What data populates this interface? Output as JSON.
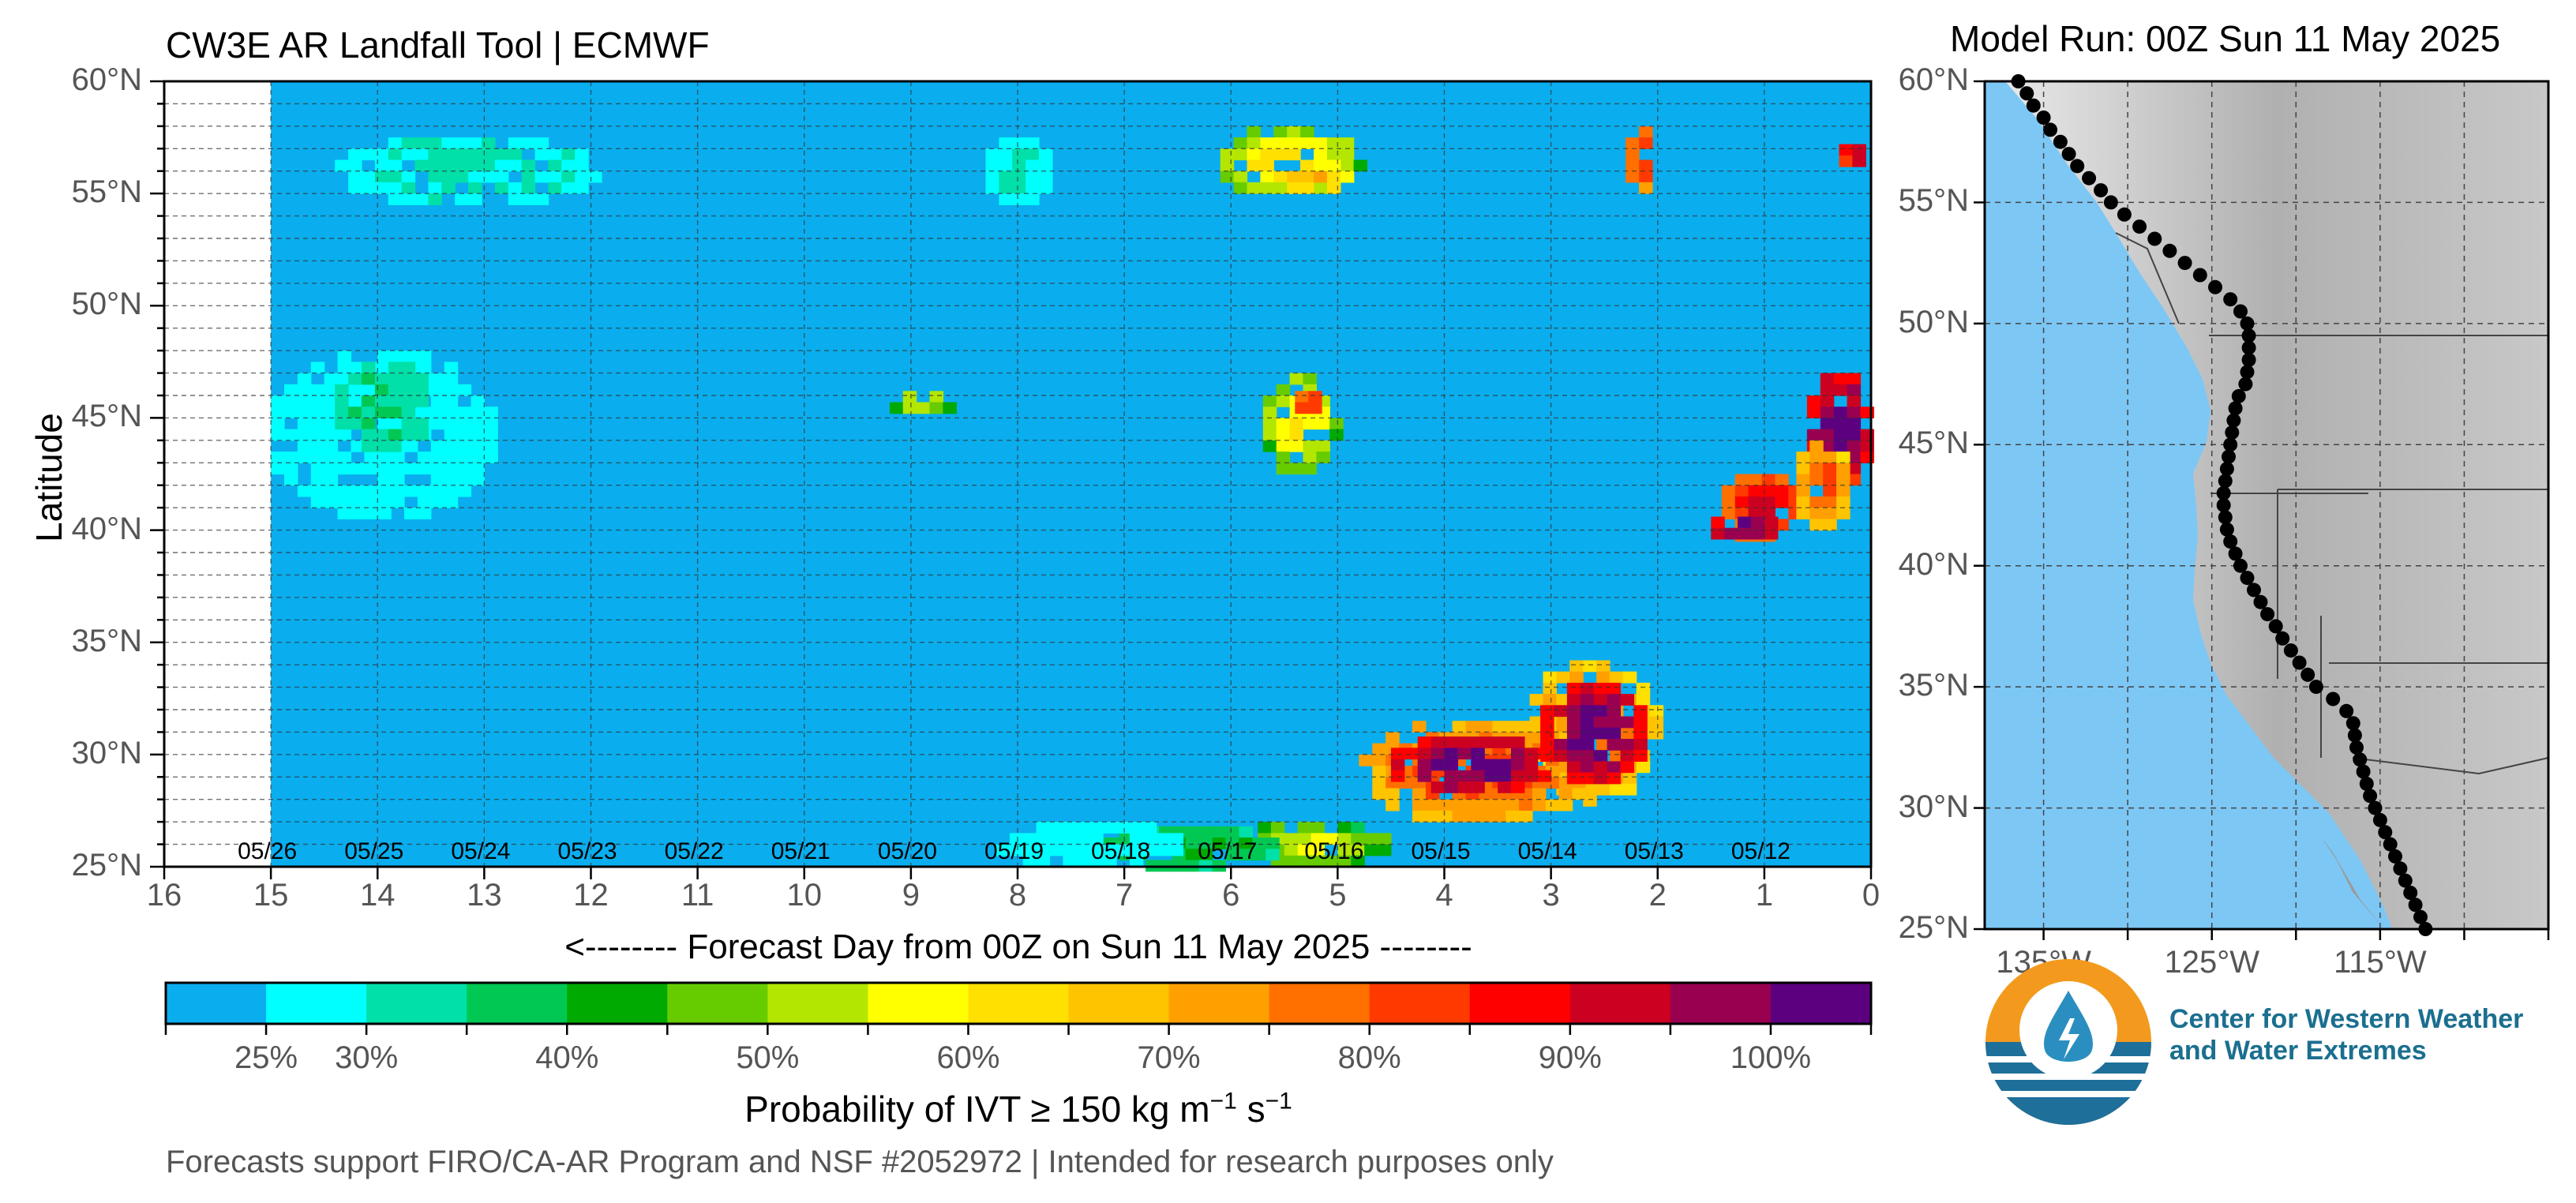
{
  "header": {
    "title": "CW3E AR Landfall Tool | ECMWF",
    "model_run": "Model Run: 00Z Sun 11 May 2025"
  },
  "chart_data": {
    "type": "heatmap",
    "ylabel": "Latitude",
    "xlabel": "<-------- Forecast Day from 00Z on Sun 11 May 2025 --------",
    "x_ticks": [
      "16",
      "15",
      "14",
      "13",
      "12",
      "11",
      "10",
      "9",
      "8",
      "7",
      "6",
      "5",
      "4",
      "3",
      "2",
      "1",
      "0"
    ],
    "y_ticks": [
      "60°N",
      "55°N",
      "50°N",
      "45°N",
      "40°N",
      "35°N",
      "30°N",
      "25°N"
    ],
    "xlim": [
      16,
      0
    ],
    "ylim": [
      25,
      60
    ],
    "date_labels": [
      "05/26",
      "05/25",
      "05/24",
      "05/23",
      "05/22",
      "05/21",
      "05/20",
      "05/19",
      "05/18",
      "05/17",
      "05/16",
      "05/15",
      "05/14",
      "05/13",
      "05/12"
    ],
    "background_color": "#0aaeee",
    "colorbar": {
      "label_prefix": "Probability of IVT ",
      "label_ge": "≥",
      "label_value": " 150 kg m",
      "label_exp1": "−1",
      "label_s": " s",
      "label_exp2": "−1",
      "ticks": [
        "25%",
        "30%",
        "40%",
        "50%",
        "60%",
        "70%",
        "80%",
        "90%",
        "100%"
      ],
      "tick_values": [
        25,
        30,
        40,
        50,
        60,
        70,
        80,
        90,
        100
      ],
      "range": [
        20,
        105
      ],
      "bins": [
        {
          "from": 20,
          "to": 25,
          "color": "#0aaeee"
        },
        {
          "from": 25,
          "to": 30,
          "color": "#00ffff"
        },
        {
          "from": 30,
          "to": 35,
          "color": "#00e0a8"
        },
        {
          "from": 35,
          "to": 40,
          "color": "#00c853"
        },
        {
          "from": 40,
          "to": 45,
          "color": "#00aa00"
        },
        {
          "from": 45,
          "to": 50,
          "color": "#66cc00"
        },
        {
          "from": 50,
          "to": 55,
          "color": "#b3e600"
        },
        {
          "from": 55,
          "to": 60,
          "color": "#ffff00"
        },
        {
          "from": 60,
          "to": 65,
          "color": "#ffe000"
        },
        {
          "from": 65,
          "to": 70,
          "color": "#ffc400"
        },
        {
          "from": 70,
          "to": 75,
          "color": "#ffa000"
        },
        {
          "from": 75,
          "to": 80,
          "color": "#ff7000"
        },
        {
          "from": 80,
          "to": 85,
          "color": "#ff3a00"
        },
        {
          "from": 85,
          "to": 90,
          "color": "#ff0000"
        },
        {
          "from": 90,
          "to": 95,
          "color": "#cc0020"
        },
        {
          "from": 95,
          "to": 100,
          "color": "#990050"
        },
        {
          "from": 100,
          "to": 105,
          "color": "#5c0080"
        }
      ]
    },
    "features": [
      {
        "day_min": 14.4,
        "day_max": 11.9,
        "lat_min": 54.5,
        "lat_max": 57.5,
        "prob": 32
      },
      {
        "day_min": 15.0,
        "day_max": 12.9,
        "lat_min": 40.5,
        "lat_max": 48.0,
        "prob": 28
      },
      {
        "day_min": 14.4,
        "day_max": 13.5,
        "lat_min": 43.5,
        "lat_max": 47.5,
        "prob": 35
      },
      {
        "day_min": 8.3,
        "day_max": 7.7,
        "lat_min": 54.5,
        "lat_max": 57.5,
        "prob": 30
      },
      {
        "day_min": 9.2,
        "day_max": 8.6,
        "lat_min": 45.2,
        "lat_max": 46.2,
        "prob": 57
      },
      {
        "day_min": 6.1,
        "day_max": 4.8,
        "lat_min": 54.8,
        "lat_max": 58.0,
        "prob": 62
      },
      {
        "day_min": 5.6,
        "day_max": 4.9,
        "lat_min": 54.8,
        "lat_max": 56.5,
        "prob": 70
      },
      {
        "day_min": 5.7,
        "day_max": 5.0,
        "lat_min": 42.5,
        "lat_max": 47.0,
        "prob": 60
      },
      {
        "day_min": 5.4,
        "day_max": 5.1,
        "lat_min": 45.2,
        "lat_max": 46.2,
        "prob": 87
      },
      {
        "day_min": 3.2,
        "day_max": 2.0,
        "lat_min": 28.0,
        "lat_max": 34.2,
        "prob": 78
      },
      {
        "day_min": 4.8,
        "day_max": 2.6,
        "lat_min": 27.0,
        "lat_max": 31.5,
        "prob": 82
      },
      {
        "day_min": 3.1,
        "day_max": 2.1,
        "lat_min": 28.8,
        "lat_max": 33.2,
        "prob": 102
      },
      {
        "day_min": 4.5,
        "day_max": 3.0,
        "lat_min": 28.2,
        "lat_max": 30.8,
        "prob": 102
      },
      {
        "day_min": 6.0,
        "day_max": 4.5,
        "lat_min": 25.0,
        "lat_max": 27.0,
        "prob": 55
      },
      {
        "day_min": 7.3,
        "day_max": 5.5,
        "lat_min": 25.0,
        "lat_max": 26.8,
        "prob": 40
      },
      {
        "day_min": 8.2,
        "day_max": 6.5,
        "lat_min": 25.0,
        "lat_max": 27.0,
        "prob": 28
      },
      {
        "day_min": 1.4,
        "day_max": 0.6,
        "lat_min": 39.5,
        "lat_max": 42.5,
        "prob": 90
      },
      {
        "day_min": 1.5,
        "day_max": 0.8,
        "lat_min": 39.6,
        "lat_max": 40.6,
        "prob": 102
      },
      {
        "day_min": 0.6,
        "day_max": 0.0,
        "lat_min": 42.0,
        "lat_max": 47.0,
        "prob": 102
      },
      {
        "day_min": 0.7,
        "day_max": 0.2,
        "lat_min": 40.0,
        "lat_max": 44.0,
        "prob": 80
      },
      {
        "day_min": 2.3,
        "day_max": 2.0,
        "lat_min": 55.0,
        "lat_max": 58.5,
        "prob": 85
      },
      {
        "day_min": 0.3,
        "day_max": 0.0,
        "lat_min": 56.3,
        "lat_max": 57.2,
        "prob": 96
      }
    ]
  },
  "map": {
    "lat_ticks": [
      "60°N",
      "55°N",
      "50°N",
      "45°N",
      "40°N",
      "35°N",
      "30°N",
      "25°N"
    ],
    "lon_ticks": [
      "135°W",
      "125°W",
      "115°W"
    ],
    "ocean_color": "#7dc7f5"
  },
  "logo": {
    "line1": "Center for Western Weather",
    "line2": "and Water Extremes"
  },
  "footer": {
    "text": "Forecasts support FIRO/CA-AR Program and NSF #2052972 | Intended for research purposes only"
  }
}
